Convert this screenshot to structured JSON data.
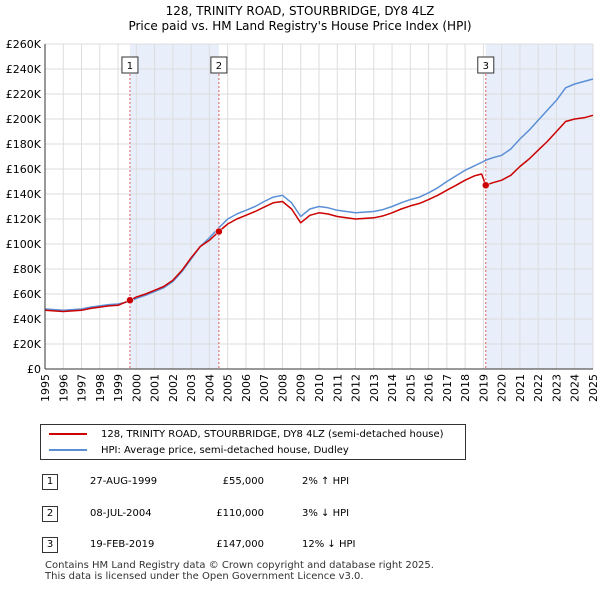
{
  "title_line1": "128, TRINITY ROAD, STOURBRIDGE, DY8 4LZ",
  "title_line2": "Price paid vs. HM Land Registry's House Price Index (HPI)",
  "colors": {
    "property": "#cc0000",
    "hpi": "#5b8fd6",
    "shade": "#e8eefa",
    "marker_line": "#e06060",
    "grid": "#dddddd"
  },
  "legend": {
    "property_label": "128, TRINITY ROAD, STOURBRIDGE, DY8 4LZ (semi-detached house)",
    "hpi_label": "HPI: Average price, semi-detached house, Dudley"
  },
  "transactions": [
    {
      "num": "1",
      "date": "27-AUG-1999",
      "price": "£55,000",
      "hpi": "2% ↑ HPI"
    },
    {
      "num": "2",
      "date": "08-JUL-2004",
      "price": "£110,000",
      "hpi": "3% ↓ HPI"
    },
    {
      "num": "3",
      "date": "19-FEB-2019",
      "price": "£147,000",
      "hpi": "12% ↓ HPI"
    }
  ],
  "footer_line1": "Contains HM Land Registry data © Crown copyright and database right 2025.",
  "footer_line2": "This data is licensed under the Open Government Licence v3.0.",
  "chart_data": {
    "type": "line",
    "xlim": [
      1995,
      2025
    ],
    "ylim": [
      0,
      260000
    ],
    "x_ticks": [
      1995,
      1996,
      1997,
      1998,
      1999,
      2000,
      2001,
      2002,
      2003,
      2004,
      2005,
      2006,
      2007,
      2008,
      2009,
      2010,
      2011,
      2012,
      2013,
      2014,
      2015,
      2016,
      2017,
      2018,
      2019,
      2020,
      2021,
      2022,
      2023,
      2024,
      2025
    ],
    "y_ticks": [
      {
        "v": 0,
        "label": "£0"
      },
      {
        "v": 20000,
        "label": "£20K"
      },
      {
        "v": 40000,
        "label": "£40K"
      },
      {
        "v": 60000,
        "label": "£60K"
      },
      {
        "v": 80000,
        "label": "£80K"
      },
      {
        "v": 100000,
        "label": "£100K"
      },
      {
        "v": 120000,
        "label": "£120K"
      },
      {
        "v": 140000,
        "label": "£140K"
      },
      {
        "v": 160000,
        "label": "£160K"
      },
      {
        "v": 180000,
        "label": "£180K"
      },
      {
        "v": 200000,
        "label": "£200K"
      },
      {
        "v": 220000,
        "label": "£220K"
      },
      {
        "v": 240000,
        "label": "£240K"
      },
      {
        "v": 260000,
        "label": "£260K"
      }
    ],
    "grid": true,
    "shaded_ranges": [
      [
        1999.65,
        2004.52
      ],
      [
        2019.13,
        2025.0
      ]
    ],
    "sales": [
      {
        "label": "1",
        "x": 1999.65,
        "y": 55000
      },
      {
        "label": "2",
        "x": 2004.52,
        "y": 110000
      },
      {
        "label": "3",
        "x": 2019.13,
        "y": 147000
      }
    ],
    "series": [
      {
        "name": "HPI: Average price, semi-detached house, Dudley",
        "points": [
          [
            1995.0,
            48000
          ],
          [
            1995.5,
            47500
          ],
          [
            1996.0,
            47000
          ],
          [
            1996.5,
            47500
          ],
          [
            1997.0,
            48000
          ],
          [
            1997.5,
            49500
          ],
          [
            1998.0,
            50500
          ],
          [
            1998.5,
            51500
          ],
          [
            1999.0,
            52000
          ],
          [
            1999.65,
            54000
          ],
          [
            2000.0,
            56500
          ],
          [
            2000.5,
            59000
          ],
          [
            2001.0,
            62000
          ],
          [
            2001.5,
            65000
          ],
          [
            2002.0,
            70000
          ],
          [
            2002.5,
            78000
          ],
          [
            2003.0,
            88000
          ],
          [
            2003.5,
            98000
          ],
          [
            2004.0,
            105000
          ],
          [
            2004.52,
            113000
          ],
          [
            2005.0,
            120000
          ],
          [
            2005.5,
            124000
          ],
          [
            2006.0,
            127000
          ],
          [
            2006.5,
            130000
          ],
          [
            2007.0,
            134000
          ],
          [
            2007.5,
            137500
          ],
          [
            2008.0,
            139000
          ],
          [
            2008.5,
            133000
          ],
          [
            2009.0,
            122000
          ],
          [
            2009.5,
            128000
          ],
          [
            2010.0,
            130000
          ],
          [
            2010.5,
            129000
          ],
          [
            2011.0,
            127000
          ],
          [
            2011.5,
            126000
          ],
          [
            2012.0,
            125000
          ],
          [
            2012.5,
            125500
          ],
          [
            2013.0,
            126000
          ],
          [
            2013.5,
            127500
          ],
          [
            2014.0,
            130000
          ],
          [
            2014.5,
            133000
          ],
          [
            2015.0,
            135500
          ],
          [
            2015.5,
            137500
          ],
          [
            2016.0,
            141000
          ],
          [
            2016.5,
            145000
          ],
          [
            2017.0,
            150000
          ],
          [
            2017.5,
            154500
          ],
          [
            2018.0,
            159000
          ],
          [
            2018.5,
            162500
          ],
          [
            2019.0,
            166000
          ],
          [
            2019.13,
            167000
          ],
          [
            2019.5,
            169000
          ],
          [
            2020.0,
            171000
          ],
          [
            2020.5,
            176000
          ],
          [
            2021.0,
            184000
          ],
          [
            2021.5,
            191000
          ],
          [
            2022.0,
            199000
          ],
          [
            2022.5,
            207000
          ],
          [
            2023.0,
            215000
          ],
          [
            2023.5,
            225000
          ],
          [
            2024.0,
            228000
          ],
          [
            2024.5,
            230000
          ],
          [
            2025.0,
            232000
          ]
        ]
      },
      {
        "name": "128, TRINITY ROAD, STOURBRIDGE, DY8 4LZ (semi-detached house)",
        "points": [
          [
            1995.0,
            47000
          ],
          [
            1995.5,
            46500
          ],
          [
            1996.0,
            46000
          ],
          [
            1996.5,
            46500
          ],
          [
            1997.0,
            47000
          ],
          [
            1997.5,
            48500
          ],
          [
            1998.0,
            49500
          ],
          [
            1998.5,
            50500
          ],
          [
            1999.0,
            51000
          ],
          [
            1999.65,
            55000
          ],
          [
            2000.0,
            57500
          ],
          [
            2000.5,
            60000
          ],
          [
            2001.0,
            63000
          ],
          [
            2001.5,
            66000
          ],
          [
            2002.0,
            71000
          ],
          [
            2002.5,
            79000
          ],
          [
            2003.0,
            89000
          ],
          [
            2003.5,
            98000
          ],
          [
            2004.0,
            103000
          ],
          [
            2004.52,
            110000
          ],
          [
            2005.0,
            116000
          ],
          [
            2005.5,
            120000
          ],
          [
            2006.0,
            123000
          ],
          [
            2006.5,
            126000
          ],
          [
            2007.0,
            129500
          ],
          [
            2007.5,
            133000
          ],
          [
            2008.0,
            134000
          ],
          [
            2008.5,
            128000
          ],
          [
            2009.0,
            117000
          ],
          [
            2009.5,
            123000
          ],
          [
            2010.0,
            125000
          ],
          [
            2010.5,
            124000
          ],
          [
            2011.0,
            122000
          ],
          [
            2011.5,
            121000
          ],
          [
            2012.0,
            120000
          ],
          [
            2012.5,
            120500
          ],
          [
            2013.0,
            121000
          ],
          [
            2013.5,
            122500
          ],
          [
            2014.0,
            125000
          ],
          [
            2014.5,
            128000
          ],
          [
            2015.0,
            130500
          ],
          [
            2015.5,
            132500
          ],
          [
            2016.0,
            135500
          ],
          [
            2016.5,
            139000
          ],
          [
            2017.0,
            143000
          ],
          [
            2017.5,
            147000
          ],
          [
            2018.0,
            151000
          ],
          [
            2018.5,
            154500
          ],
          [
            2018.9,
            156000
          ],
          [
            2019.13,
            147000
          ],
          [
            2019.5,
            149000
          ],
          [
            2020.0,
            151000
          ],
          [
            2020.5,
            155000
          ],
          [
            2021.0,
            162000
          ],
          [
            2021.5,
            168000
          ],
          [
            2022.0,
            175000
          ],
          [
            2022.5,
            182000
          ],
          [
            2023.0,
            190000
          ],
          [
            2023.5,
            198000
          ],
          [
            2024.0,
            200000
          ],
          [
            2024.5,
            201000
          ],
          [
            2025.0,
            203000
          ]
        ]
      }
    ]
  }
}
